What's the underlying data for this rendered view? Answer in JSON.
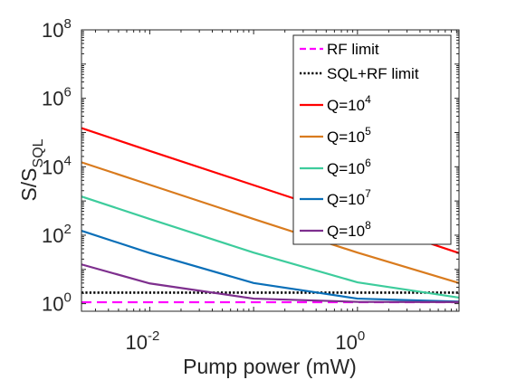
{
  "chart_data": {
    "type": "line",
    "xlabel": "Pump power (mW)",
    "ylabel": {
      "main": "S/S",
      "sub": "SQL"
    },
    "x_scale": "log",
    "y_scale": "log",
    "xlim": [
      0.0022,
      9.5
    ],
    "ylim": [
      0.6,
      100000000
    ],
    "grid": false,
    "legend_position": "top-right",
    "x_ticks": [
      {
        "value": 0.01,
        "base": "10",
        "exp": "-2"
      },
      {
        "value": 1,
        "base": "10",
        "exp": "0"
      }
    ],
    "y_ticks": [
      {
        "value": 1,
        "base": "10",
        "exp": "0"
      },
      {
        "value": 100,
        "base": "10",
        "exp": "2"
      },
      {
        "value": 10000,
        "base": "10",
        "exp": "4"
      },
      {
        "value": 1000000,
        "base": "10",
        "exp": "6"
      },
      {
        "value": 100000000,
        "base": "10",
        "exp": "8"
      }
    ],
    "series": [
      {
        "name": "RF limit",
        "color": "#ff00ff",
        "dash": "dashed",
        "x": [
          0.0022,
          9.5
        ],
        "y": [
          1.1,
          1.1
        ]
      },
      {
        "name": "SQL+RF limit",
        "color": "#000000",
        "dash": "dotted",
        "x": [
          0.0022,
          9.5
        ],
        "y": [
          2.1,
          2.1
        ]
      },
      {
        "name": "Q=10",
        "exp": "4",
        "color": "#ff0000",
        "dash": "solid",
        "x": [
          0.0022,
          0.01,
          0.1,
          1,
          9.5
        ],
        "y": [
          135000,
          29000,
          2900,
          290,
          30
        ]
      },
      {
        "name": "Q=10",
        "exp": "5",
        "color": "#d97b1e",
        "dash": "solid",
        "x": [
          0.0022,
          0.01,
          0.1,
          1,
          9.5
        ],
        "y": [
          13500,
          2970,
          298,
          31,
          4
        ]
      },
      {
        "name": "Q=10",
        "exp": "6",
        "color": "#3dcc9c",
        "dash": "solid",
        "x": [
          0.0022,
          0.01,
          0.1,
          1,
          9.5
        ],
        "y": [
          1350,
          298,
          31,
          4.2,
          1.5
        ]
      },
      {
        "name": "Q=10",
        "exp": "7",
        "color": "#0a6fb8",
        "dash": "solid",
        "x": [
          0.0022,
          0.01,
          0.1,
          1,
          9.5
        ],
        "y": [
          135,
          30,
          4,
          1.4,
          1.15
        ]
      },
      {
        "name": "Q=10",
        "exp": "8",
        "color": "#7e2f8e",
        "dash": "solid",
        "x": [
          0.0022,
          0.01,
          0.1,
          1,
          9.5
        ],
        "y": [
          14,
          3.9,
          1.4,
          1.13,
          1.11
        ]
      }
    ]
  }
}
